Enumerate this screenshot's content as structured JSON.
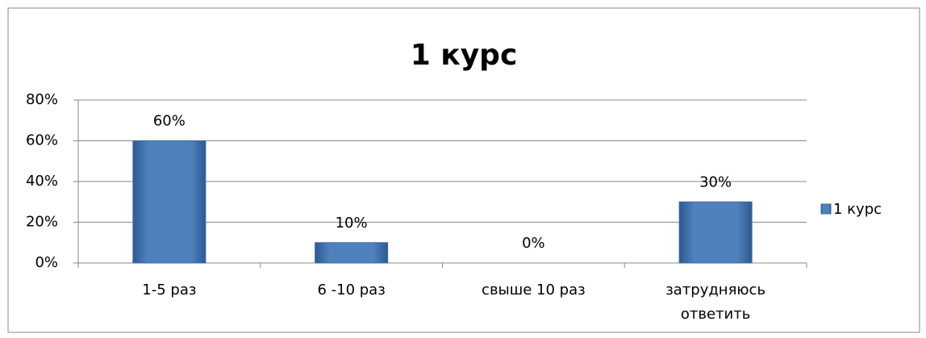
{
  "chart_data": {
    "type": "bar",
    "title": "1 курс",
    "categories": [
      "1-5 раз",
      "6 -10 раз",
      "свыше 10 раз",
      "затрудняюсь ответить"
    ],
    "series": [
      {
        "name": "1 курс",
        "color": "#4f81bd",
        "values": [
          60,
          10,
          0,
          30
        ],
        "value_labels": [
          "60%",
          "10%",
          "0%",
          "30%"
        ]
      }
    ],
    "ylim": [
      0,
      80
    ],
    "yticks": [
      {
        "value": 0,
        "label": "0%"
      },
      {
        "value": 20,
        "label": "20%"
      },
      {
        "value": 40,
        "label": "40%"
      },
      {
        "value": 60,
        "label": "60%"
      },
      {
        "value": 80,
        "label": "80%"
      }
    ],
    "grid": true,
    "legend": "right"
  }
}
